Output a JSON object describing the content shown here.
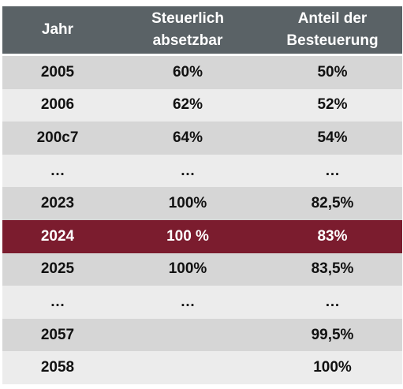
{
  "table": {
    "headers": {
      "year": "Jahr",
      "deductible": [
        "Steuerlich",
        "absetzbar"
      ],
      "taxation": [
        "Anteil der",
        "Besteuerung"
      ]
    },
    "rows": [
      {
        "year": "2005",
        "deductible": "60%",
        "taxation": "50%",
        "style": "odd"
      },
      {
        "year": "2006",
        "deductible": "62%",
        "taxation": "52%",
        "style": "even"
      },
      {
        "year": "200c7",
        "deductible": "64%",
        "taxation": "54%",
        "style": "odd"
      },
      {
        "year": "…",
        "deductible": "…",
        "taxation": "…",
        "style": "even"
      },
      {
        "year": "2023",
        "deductible": "100%",
        "taxation": "82,5%",
        "style": "odd"
      },
      {
        "year": "2024",
        "deductible": "100 %",
        "taxation": "83%",
        "style": "hl"
      },
      {
        "year": "2025",
        "deductible": "100%",
        "taxation": "83,5%",
        "style": "odd"
      },
      {
        "year": "…",
        "deductible": "…",
        "taxation": "…",
        "style": "even"
      },
      {
        "year": "2057",
        "deductible": "",
        "taxation": "99,5%",
        "style": "odd"
      },
      {
        "year": "2058",
        "deductible": "",
        "taxation": "100%",
        "style": "even"
      }
    ]
  },
  "colors": {
    "header_bg": "#5a6266",
    "highlight_bg": "#7b1c2e",
    "row_dark": "#d6d6d6",
    "row_light": "#ececec"
  }
}
